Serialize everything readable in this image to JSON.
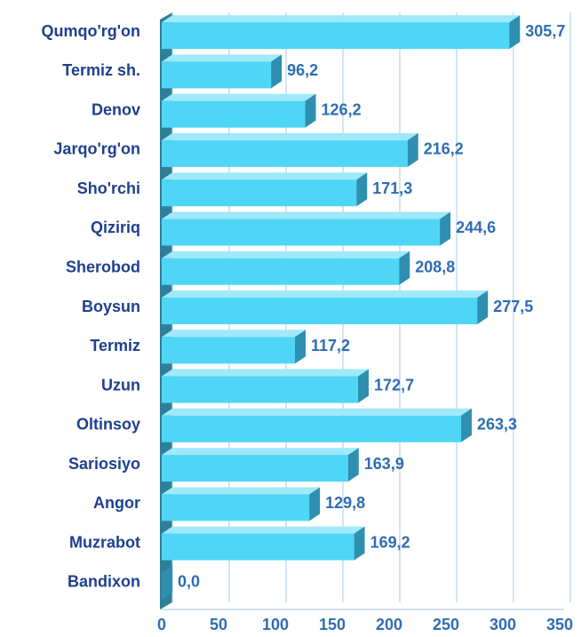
{
  "chart_data": {
    "type": "bar",
    "orientation": "horizontal",
    "categories": [
      "Qumqo'rg'on",
      "Termiz sh.",
      "Denov",
      "Jarqo'rg'on",
      "Sho'rchi",
      "Qiziriq",
      "Sherobod",
      "Boysun",
      "Termiz",
      "Uzun",
      "Oltinsoy",
      "Sariosiyo",
      "Angor",
      "Muzrabot",
      "Bandixon"
    ],
    "values": [
      305.7,
      96.2,
      126.2,
      216.2,
      171.3,
      244.6,
      208.8,
      277.5,
      117.2,
      172.7,
      263.3,
      163.9,
      129.8,
      169.2,
      0.0
    ],
    "value_labels": [
      "305,7",
      "96,2",
      "126,2",
      "216,2",
      "171,3",
      "244,6",
      "208,8",
      "277,5",
      "117,2",
      "172,7",
      "263,3",
      "163,9",
      "129,8",
      "169,2",
      "0,0"
    ],
    "color": "#4fd6f6",
    "xlim": [
      0,
      350
    ],
    "xticks": [
      0,
      50,
      100,
      150,
      200,
      250,
      300,
      350
    ],
    "grid": true
  }
}
